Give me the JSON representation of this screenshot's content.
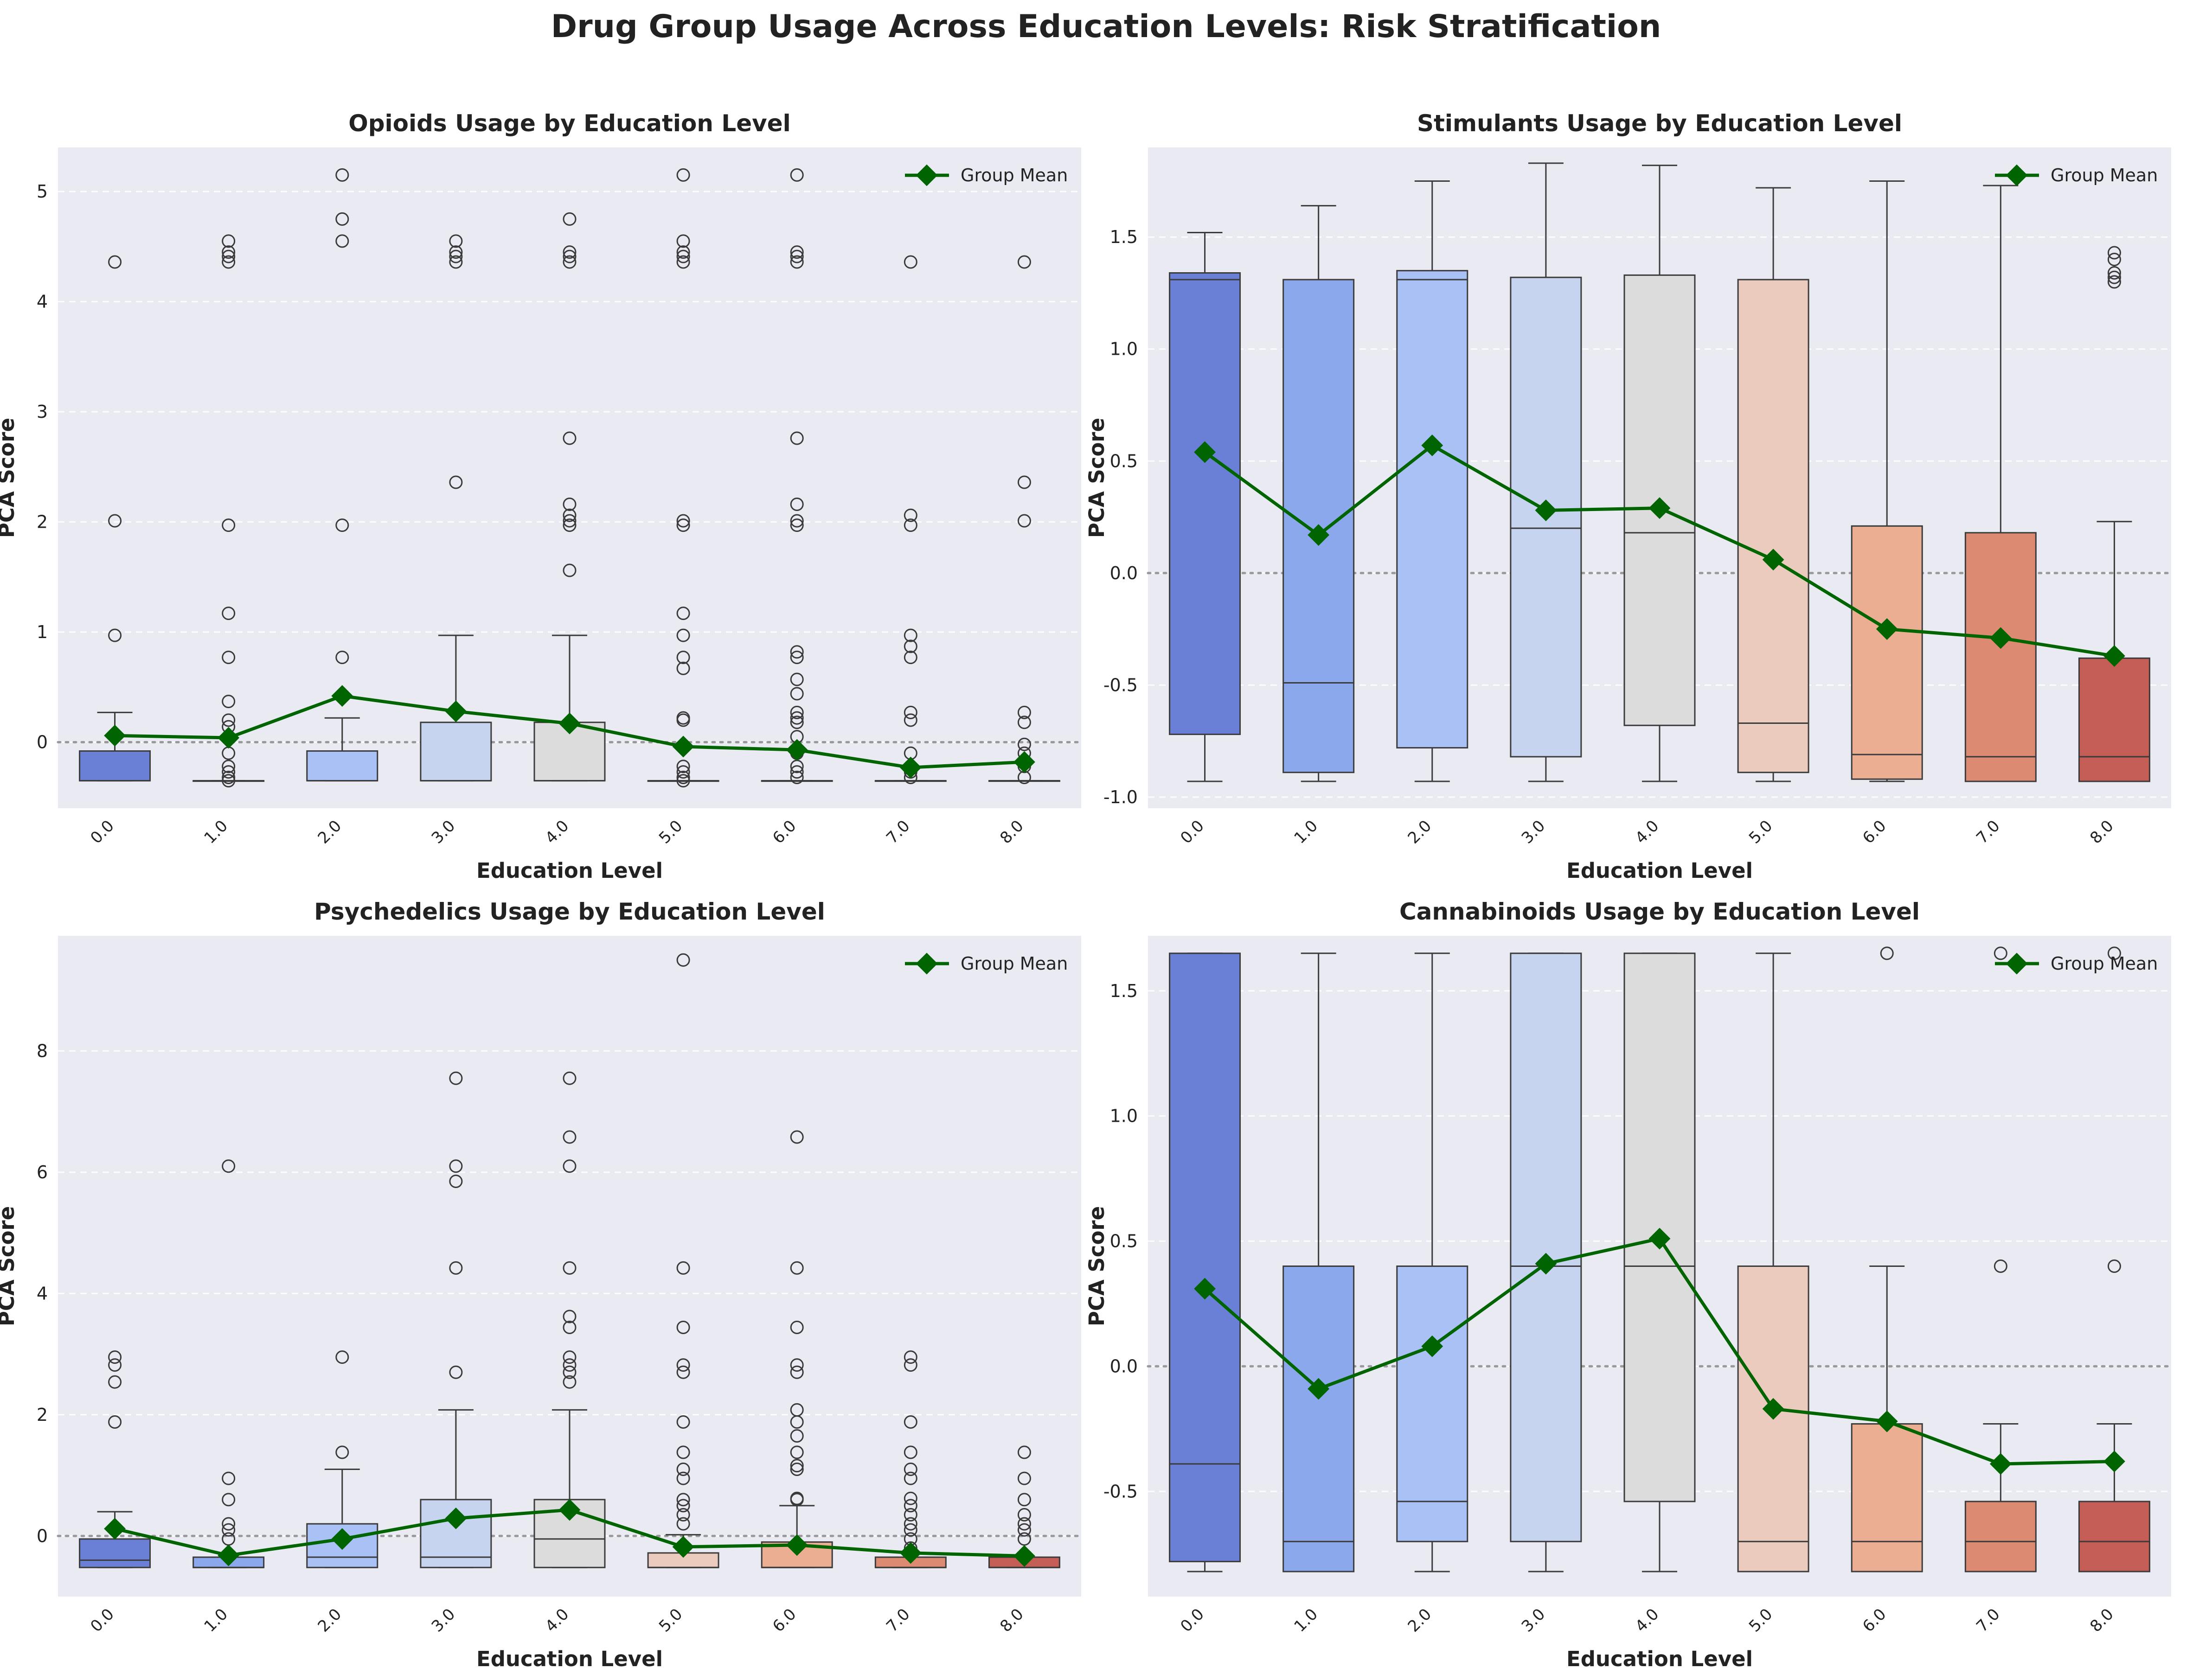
{
  "figure_title": "Drug Group Usage Across Education Levels: Risk Stratification",
  "colors": {
    "background": "#EAEAF2",
    "mean_line": "#006400",
    "reference_line": "#999999",
    "box_edge": "#3b3b3b",
    "box_fills": [
      "#6A80D6",
      "#8CA8EC",
      "#AAC1F6",
      "#C6D4EF",
      "#DCDCDC",
      "#EBCBBE",
      "#EBAE92",
      "#DD8A72",
      "#C45D55"
    ]
  },
  "chart_data": [
    {
      "type": "box",
      "title": "Opioids Usage by Education Level",
      "xlabel": "Education Level",
      "ylabel": "PCA Score",
      "categories": [
        "0.0",
        "1.0",
        "2.0",
        "3.0",
        "4.0",
        "5.0",
        "6.0",
        "7.0",
        "8.0"
      ],
      "ylim": [
        -0.6,
        5.4
      ],
      "yticks": [
        0,
        1,
        2,
        3,
        4,
        5
      ],
      "legend": {
        "label": "Group Mean",
        "position": "top-right"
      },
      "boxes": [
        {
          "whislo": -0.35,
          "q1": -0.35,
          "med": -0.35,
          "q3": -0.08,
          "whishi": 0.27,
          "fliers": [
            0.97,
            2.01,
            4.36
          ]
        },
        {
          "whislo": -0.35,
          "q1": -0.35,
          "med": -0.35,
          "q3": -0.35,
          "whishi": -0.35,
          "fliers": [
            -0.35,
            -0.32,
            -0.27,
            -0.22,
            -0.1,
            0.14,
            0.2,
            0.37,
            0.77,
            1.17,
            1.97,
            4.36,
            4.41,
            4.45,
            4.55
          ]
        },
        {
          "whislo": -0.35,
          "q1": -0.35,
          "med": -0.35,
          "q3": -0.08,
          "whishi": 0.22,
          "fliers": [
            0.77,
            1.97,
            4.55,
            4.75,
            5.15
          ]
        },
        {
          "whislo": -0.35,
          "q1": -0.35,
          "med": -0.35,
          "q3": 0.18,
          "whishi": 0.97,
          "fliers": [
            2.36,
            4.36,
            4.41,
            4.45,
            4.55
          ]
        },
        {
          "whislo": -0.35,
          "q1": -0.35,
          "med": -0.35,
          "q3": 0.18,
          "whishi": 0.97,
          "fliers": [
            1.56,
            1.97,
            2.01,
            2.06,
            2.16,
            2.76,
            4.36,
            4.41,
            4.45,
            4.75
          ]
        },
        {
          "whislo": -0.35,
          "q1": -0.35,
          "med": -0.35,
          "q3": -0.35,
          "whishi": -0.35,
          "fliers": [
            -0.35,
            -0.32,
            -0.27,
            -0.22,
            0.2,
            0.22,
            0.67,
            0.77,
            0.97,
            1.17,
            1.97,
            2.01,
            4.36,
            4.41,
            4.45,
            4.55,
            5.15
          ]
        },
        {
          "whislo": -0.35,
          "q1": -0.35,
          "med": -0.35,
          "q3": -0.35,
          "whishi": -0.35,
          "fliers": [
            -0.32,
            -0.27,
            -0.22,
            -0.1,
            0.05,
            0.18,
            0.22,
            0.27,
            0.44,
            0.57,
            0.77,
            0.82,
            1.97,
            2.01,
            2.16,
            2.76,
            4.36,
            4.41,
            4.45,
            5.15
          ]
        },
        {
          "whislo": -0.35,
          "q1": -0.35,
          "med": -0.35,
          "q3": -0.35,
          "whishi": -0.35,
          "fliers": [
            -0.32,
            -0.27,
            -0.22,
            -0.1,
            0.2,
            0.27,
            0.77,
            0.87,
            0.97,
            1.97,
            2.06,
            4.36
          ]
        },
        {
          "whislo": -0.35,
          "q1": -0.35,
          "med": -0.35,
          "q3": -0.35,
          "whishi": -0.35,
          "fliers": [
            -0.32,
            -0.22,
            -0.1,
            -0.02,
            0.18,
            0.27,
            2.01,
            2.36,
            4.36
          ]
        }
      ],
      "means": [
        0.06,
        0.04,
        0.42,
        0.28,
        0.17,
        -0.04,
        -0.07,
        -0.23,
        -0.18
      ]
    },
    {
      "type": "box",
      "title": "Stimulants Usage by Education Level",
      "xlabel": "Education Level",
      "ylabel": "PCA Score",
      "categories": [
        "0.0",
        "1.0",
        "2.0",
        "3.0",
        "4.0",
        "5.0",
        "6.0",
        "7.0",
        "8.0"
      ],
      "ylim": [
        -1.05,
        1.9
      ],
      "yticks": [
        -1.0,
        -0.5,
        0.0,
        0.5,
        1.0,
        1.5
      ],
      "legend": {
        "label": "Group Mean",
        "position": "top-right"
      },
      "boxes": [
        {
          "whislo": -0.93,
          "q1": -0.72,
          "med": 1.31,
          "q3": 1.34,
          "whishi": 1.52,
          "fliers": []
        },
        {
          "whislo": -0.93,
          "q1": -0.89,
          "med": -0.49,
          "q3": 1.31,
          "whishi": 1.64,
          "fliers": []
        },
        {
          "whislo": -0.93,
          "q1": -0.78,
          "med": 1.31,
          "q3": 1.35,
          "whishi": 1.75,
          "fliers": []
        },
        {
          "whislo": -0.93,
          "q1": -0.82,
          "med": 0.2,
          "q3": 1.32,
          "whishi": 1.83,
          "fliers": []
        },
        {
          "whislo": -0.93,
          "q1": -0.68,
          "med": 0.18,
          "q3": 1.33,
          "whishi": 1.82,
          "fliers": []
        },
        {
          "whislo": -0.93,
          "q1": -0.89,
          "med": -0.67,
          "q3": 1.31,
          "whishi": 1.72,
          "fliers": []
        },
        {
          "whislo": -0.93,
          "q1": -0.92,
          "med": -0.81,
          "q3": 0.21,
          "whishi": 1.75,
          "fliers": []
        },
        {
          "whislo": -0.93,
          "q1": -0.93,
          "med": -0.82,
          "q3": 0.18,
          "whishi": 1.73,
          "fliers": []
        },
        {
          "whislo": -0.93,
          "q1": -0.93,
          "med": -0.82,
          "q3": -0.38,
          "whishi": 0.23,
          "fliers": [
            1.3,
            1.32,
            1.34,
            1.4,
            1.43
          ]
        }
      ],
      "means": [
        0.54,
        0.17,
        0.57,
        0.28,
        0.29,
        0.06,
        -0.25,
        -0.29,
        -0.37
      ]
    },
    {
      "type": "box",
      "title": "Psychedelics Usage by Education Level",
      "xlabel": "Education Level",
      "ylabel": "PCA Score",
      "categories": [
        "0.0",
        "1.0",
        "2.0",
        "3.0",
        "4.0",
        "5.0",
        "6.0",
        "7.0",
        "8.0"
      ],
      "ylim": [
        -1.0,
        9.9
      ],
      "yticks": [
        0,
        2,
        4,
        6,
        8
      ],
      "legend": {
        "label": "Group Mean",
        "position": "top-right"
      },
      "boxes": [
        {
          "whislo": -0.52,
          "q1": -0.52,
          "med": -0.4,
          "q3": -0.05,
          "whishi": 0.4,
          "fliers": [
            1.88,
            2.54,
            2.82,
            2.95
          ]
        },
        {
          "whislo": -0.52,
          "q1": -0.52,
          "med": -0.52,
          "q3": -0.35,
          "whishi": -0.35,
          "fliers": [
            -0.05,
            0.1,
            0.2,
            0.6,
            0.95,
            6.1
          ]
        },
        {
          "whislo": -0.52,
          "q1": -0.52,
          "med": -0.35,
          "q3": 0.2,
          "whishi": 1.1,
          "fliers": [
            1.38,
            2.95
          ]
        },
        {
          "whislo": -0.52,
          "q1": -0.52,
          "med": -0.35,
          "q3": 0.6,
          "whishi": 2.08,
          "fliers": [
            2.7,
            4.42,
            5.85,
            6.1,
            7.55
          ]
        },
        {
          "whislo": -0.52,
          "q1": -0.52,
          "med": -0.05,
          "q3": 0.6,
          "whishi": 2.08,
          "fliers": [
            2.54,
            2.7,
            2.82,
            2.95,
            3.44,
            3.62,
            4.42,
            6.1,
            6.58,
            7.55
          ]
        },
        {
          "whislo": -0.52,
          "q1": -0.52,
          "med": -0.52,
          "q3": -0.28,
          "whishi": 0.02,
          "fliers": [
            0.2,
            0.35,
            0.5,
            0.6,
            0.95,
            1.1,
            1.38,
            1.88,
            2.7,
            2.82,
            3.44,
            4.42,
            9.5
          ]
        },
        {
          "whislo": -0.52,
          "q1": -0.52,
          "med": -0.52,
          "q3": -0.1,
          "whishi": 0.5,
          "fliers": [
            0.6,
            0.62,
            1.1,
            1.16,
            1.38,
            1.65,
            1.88,
            2.08,
            2.7,
            2.82,
            3.44,
            4.42,
            6.58
          ]
        },
        {
          "whislo": -0.52,
          "q1": -0.52,
          "med": -0.52,
          "q3": -0.35,
          "whishi": -0.35,
          "fliers": [
            -0.2,
            -0.05,
            0.1,
            0.2,
            0.35,
            0.5,
            0.62,
            0.95,
            1.1,
            1.38,
            1.88,
            2.82,
            2.95
          ]
        },
        {
          "whislo": -0.52,
          "q1": -0.52,
          "med": -0.52,
          "q3": -0.35,
          "whishi": -0.35,
          "fliers": [
            -0.05,
            0.1,
            0.2,
            0.35,
            0.6,
            0.95,
            1.38
          ]
        }
      ],
      "means": [
        0.12,
        -0.32,
        -0.05,
        0.29,
        0.43,
        -0.18,
        -0.15,
        -0.28,
        -0.33
      ]
    },
    {
      "type": "box",
      "title": "Cannabinoids Usage by Education Level",
      "xlabel": "Education Level",
      "ylabel": "PCA Score",
      "categories": [
        "0.0",
        "1.0",
        "2.0",
        "3.0",
        "4.0",
        "5.0",
        "6.0",
        "7.0",
        "8.0"
      ],
      "ylim": [
        -0.92,
        1.72
      ],
      "yticks": [
        -0.5,
        0.0,
        0.5,
        1.0,
        1.5
      ],
      "legend": {
        "label": "Group Mean",
        "position": "top-right"
      },
      "boxes": [
        {
          "whislo": -0.82,
          "q1": -0.78,
          "med": -0.39,
          "q3": 1.65,
          "whishi": 1.65,
          "fliers": []
        },
        {
          "whislo": -0.82,
          "q1": -0.82,
          "med": -0.7,
          "q3": 0.4,
          "whishi": 1.65,
          "fliers": []
        },
        {
          "whislo": -0.82,
          "q1": -0.7,
          "med": -0.54,
          "q3": 0.4,
          "whishi": 1.65,
          "fliers": []
        },
        {
          "whislo": -0.82,
          "q1": -0.7,
          "med": 0.4,
          "q3": 1.65,
          "whishi": 1.65,
          "fliers": []
        },
        {
          "whislo": -0.82,
          "q1": -0.54,
          "med": 0.4,
          "q3": 1.65,
          "whishi": 1.65,
          "fliers": []
        },
        {
          "whislo": -0.82,
          "q1": -0.82,
          "med": -0.7,
          "q3": 0.4,
          "whishi": 1.65,
          "fliers": []
        },
        {
          "whislo": -0.82,
          "q1": -0.82,
          "med": -0.7,
          "q3": -0.23,
          "whishi": 0.4,
          "fliers": [
            1.65
          ]
        },
        {
          "whislo": -0.82,
          "q1": -0.82,
          "med": -0.7,
          "q3": -0.54,
          "whishi": -0.23,
          "fliers": [
            0.4,
            1.65
          ]
        },
        {
          "whislo": -0.82,
          "q1": -0.82,
          "med": -0.7,
          "q3": -0.54,
          "whishi": -0.23,
          "fliers": [
            0.4,
            1.65
          ]
        }
      ],
      "means": [
        0.31,
        -0.09,
        0.08,
        0.41,
        0.51,
        -0.17,
        -0.22,
        -0.39,
        -0.38
      ]
    }
  ]
}
